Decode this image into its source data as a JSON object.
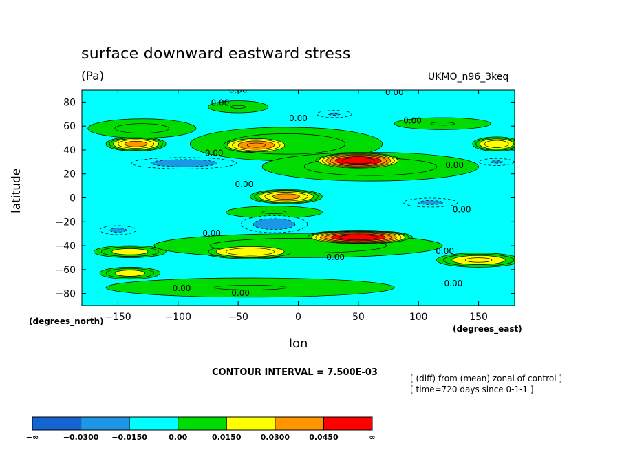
{
  "chart_data": {
    "type": "heatmap",
    "title": "surface downward eastward stress",
    "units": "(Pa)",
    "model": "UKMO_n96_3keq",
    "xlabel": "lon",
    "ylabel": "latitude",
    "x_unit": "(degrees_east)",
    "y_unit": "(degrees_north)",
    "xlim": [
      -180,
      180
    ],
    "ylim": [
      -90,
      90
    ],
    "x_ticks": [
      -150,
      -100,
      -50,
      0,
      50,
      100,
      150
    ],
    "y_ticks": [
      80,
      60,
      40,
      20,
      0,
      -20,
      -40,
      -60,
      -80
    ],
    "contour_interval_text": "CONTOUR INTERVAL = 7.500E-03",
    "notes": [
      "[ (diff) from (mean) zonal of control ]",
      "[ time=720 days since 0-1-1 ]"
    ],
    "contour_labels": [
      {
        "text": "0.00",
        "lon": -50,
        "lat": 88
      },
      {
        "text": "0.00",
        "lon": -65,
        "lat": 77
      },
      {
        "text": "0.00",
        "lon": 80,
        "lat": 86
      },
      {
        "text": "0.00",
        "lon": 0,
        "lat": 64
      },
      {
        "text": "0.00",
        "lon": 95,
        "lat": 62
      },
      {
        "text": "0.00",
        "lon": -70,
        "lat": 35
      },
      {
        "text": "0.00",
        "lon": 130,
        "lat": 25
      },
      {
        "text": "0.00",
        "lon": -45,
        "lat": 9
      },
      {
        "text": "0.00",
        "lon": 136,
        "lat": -12
      },
      {
        "text": "0.00",
        "lon": -72,
        "lat": -32
      },
      {
        "text": "0.00",
        "lon": 31,
        "lat": -52
      },
      {
        "text": "0.00",
        "lon": 122,
        "lat": -47
      },
      {
        "text": "0.00",
        "lon": 129,
        "lat": -74
      },
      {
        "text": "0.00",
        "lon": -97,
        "lat": -78
      },
      {
        "text": "0.00",
        "lon": -48,
        "lat": -82
      }
    ],
    "legend": {
      "colors": [
        "#1464d2",
        "#1e96e6",
        "#00ffff",
        "#00dc00",
        "#ffff00",
        "#ff9600",
        "#ff0000"
      ],
      "labels": [
        "-∞",
        "-0.0300",
        "-0.0150",
        "0.00",
        "0.0150",
        "0.0300",
        "0.0450",
        "∞"
      ]
    },
    "features": [
      {
        "lon": -135,
        "lat": 45,
        "value": 0.035,
        "rx": 25,
        "ry": 6
      },
      {
        "lon": -35,
        "lat": 44,
        "value": 0.04,
        "rx": 30,
        "ry": 7
      },
      {
        "lon": 50,
        "lat": 31,
        "value": 0.06,
        "rx": 38,
        "ry": 7
      },
      {
        "lon": 165,
        "lat": 45,
        "value": 0.03,
        "rx": 20,
        "ry": 6
      },
      {
        "lon": -10,
        "lat": 1,
        "value": 0.035,
        "rx": 30,
        "ry": 6
      },
      {
        "lon": 50,
        "lat": -33,
        "value": 0.06,
        "rx": 45,
        "ry": 6
      },
      {
        "lon": -40,
        "lat": -45,
        "value": 0.03,
        "rx": 40,
        "ry": 6
      },
      {
        "lon": -140,
        "lat": -45,
        "value": 0.02,
        "rx": 30,
        "ry": 5
      },
      {
        "lon": 150,
        "lat": -52,
        "value": 0.025,
        "rx": 35,
        "ry": 6
      },
      {
        "lon": -140,
        "lat": -63,
        "value": 0.02,
        "rx": 25,
        "ry": 5
      },
      {
        "lon": -95,
        "lat": 29,
        "value": -0.02,
        "rx": 55,
        "ry": 6
      },
      {
        "lon": -20,
        "lat": -22,
        "value": -0.02,
        "rx": 35,
        "ry": 9
      },
      {
        "lon": 110,
        "lat": -4,
        "value": -0.017,
        "rx": 30,
        "ry": 5
      },
      {
        "lon": -150,
        "lat": -27,
        "value": -0.017,
        "rx": 20,
        "ry": 5
      },
      {
        "lon": 30,
        "lat": 70,
        "value": -0.016,
        "rx": 20,
        "ry": 4
      },
      {
        "lon": 165,
        "lat": 30,
        "value": -0.016,
        "rx": 20,
        "ry": 4
      },
      {
        "lon": -10,
        "lat": 45,
        "value": 0.012,
        "rx": 80,
        "ry": 14
      },
      {
        "lon": 60,
        "lat": 26,
        "value": 0.012,
        "rx": 90,
        "ry": 12
      },
      {
        "lon": 0,
        "lat": -40,
        "value": 0.012,
        "rx": 120,
        "ry": 10
      },
      {
        "lon": -40,
        "lat": -75,
        "value": 0.008,
        "rx": 120,
        "ry": 8
      },
      {
        "lon": -50,
        "lat": 76,
        "value": 0.008,
        "rx": 25,
        "ry": 5
      },
      {
        "lon": 120,
        "lat": 62,
        "value": 0.008,
        "rx": 40,
        "ry": 5
      },
      {
        "lon": -130,
        "lat": 58,
        "value": 0.01,
        "rx": 45,
        "ry": 8
      },
      {
        "lon": -20,
        "lat": -12,
        "value": 0.008,
        "rx": 40,
        "ry": 5
      }
    ]
  }
}
